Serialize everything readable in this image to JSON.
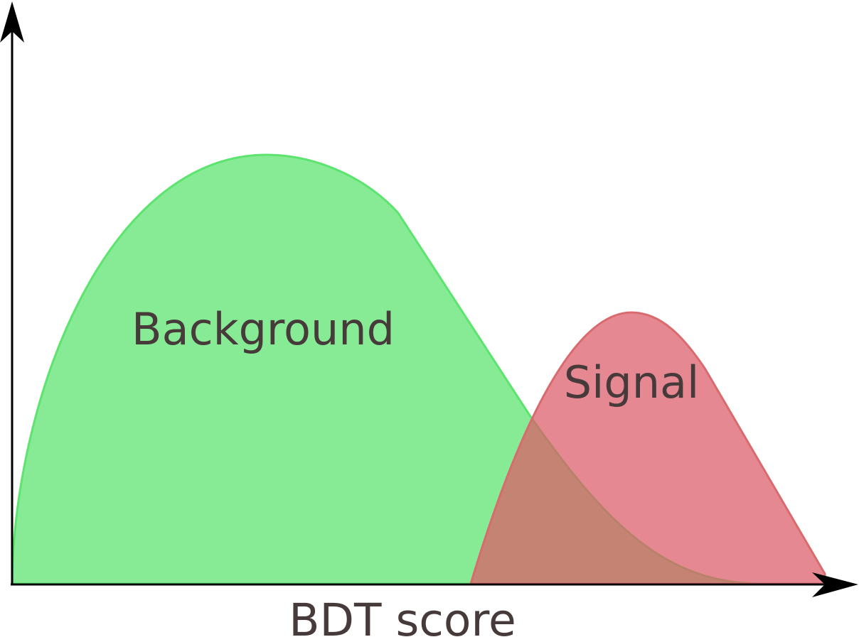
{
  "labels": {
    "background": "Background",
    "signal": "Signal",
    "x_axis": "BDT score"
  },
  "colors": {
    "background_fill": "#86eb94",
    "background_stroke": "#5de46f",
    "signal_fill": "#e07c82",
    "signal_stroke": "#d96a6e",
    "axis": "#000000",
    "text": "#473a3a"
  }
}
